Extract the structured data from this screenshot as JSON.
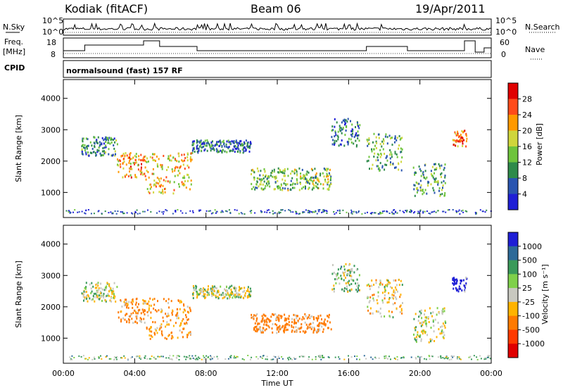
{
  "header": {
    "station": "Kodiak (fitACF)",
    "beam": "Beam 06",
    "date": "19/Apr/2011"
  },
  "status_panels": {
    "nsky_label": "N.Sky",
    "freq_label_1": "Freq.",
    "freq_label_2": "[MHz]",
    "cpid_label": "CPID",
    "nsearch_label": "N.Search",
    "nave_label": "Nave",
    "noise_ticks_left": [
      "10^5",
      "10^0"
    ],
    "noise_ticks_right": [
      "10^5",
      "10^0"
    ],
    "freq_ticks": [
      "18",
      "8"
    ],
    "nave_ticks": [
      "60",
      "0"
    ],
    "cpid_text": "normalsound (fast) 157 RF"
  },
  "chart_data": [
    {
      "type": "heatmap",
      "name": "power",
      "ylabel": "Slant Range [km]",
      "ylim": [
        200,
        4600
      ],
      "y_ticks": [
        "1000",
        "2000",
        "3000",
        "4000"
      ],
      "colorbar_label": "Power [dB]",
      "colorbar_ticks": [
        "28",
        "24",
        "20",
        "16",
        "12",
        "8",
        "4"
      ],
      "colorbar_colors": [
        "#1f1fd6",
        "#2a55b0",
        "#2e8a4a",
        "#6ec43c",
        "#cfd63b",
        "#ff9900",
        "#ff4b1a",
        "#e00000"
      ],
      "echo_bands": [
        {
          "t": [
            1.0,
            3.0
          ],
          "r": [
            2200,
            2800
          ],
          "level": 10
        },
        {
          "t": [
            3.0,
            4.6
          ],
          "r": [
            1500,
            2300
          ],
          "level": 22
        },
        {
          "t": [
            4.6,
            7.2
          ],
          "r": [
            1000,
            2300
          ],
          "level": 20
        },
        {
          "t": [
            7.2,
            10.5
          ],
          "r": [
            2300,
            2700
          ],
          "level": 8
        },
        {
          "t": [
            10.5,
            15.0
          ],
          "r": [
            1100,
            1800
          ],
          "level": 14
        },
        {
          "t": [
            15.0,
            16.6
          ],
          "r": [
            2500,
            3400
          ],
          "level": 9
        },
        {
          "t": [
            17.0,
            19.0
          ],
          "r": [
            1700,
            2900
          ],
          "level": 12
        },
        {
          "t": [
            19.6,
            21.4
          ],
          "r": [
            900,
            2000
          ],
          "level": 11
        },
        {
          "t": [
            21.8,
            22.6
          ],
          "r": [
            2500,
            3000
          ],
          "level": 24
        }
      ]
    },
    {
      "type": "heatmap",
      "name": "velocity",
      "ylabel": "Slant Range [km]",
      "ylim": [
        200,
        4600
      ],
      "y_ticks": [
        "1000",
        "2000",
        "3000",
        "4000"
      ],
      "colorbar_label": "Velocity [m s⁻¹]",
      "colorbar_ticks": [
        "1000",
        "500",
        "100",
        "25",
        "-25",
        "-100",
        "-500",
        "-1000"
      ],
      "colorbar_colors": [
        "#1f1fd6",
        "#2d6a98",
        "#3a9a5a",
        "#7fd04a",
        "#c8c8c0",
        "#ffb300",
        "#ff7a00",
        "#ff3a00",
        "#e00000"
      ],
      "echo_bands": [
        {
          "t": [
            1.0,
            3.0
          ],
          "r": [
            2200,
            2800
          ],
          "v": 0
        },
        {
          "t": [
            3.0,
            4.6
          ],
          "r": [
            1500,
            2300
          ],
          "v": -150
        },
        {
          "t": [
            4.6,
            7.2
          ],
          "r": [
            1000,
            2300
          ],
          "v": -120
        },
        {
          "t": [
            7.2,
            10.5
          ],
          "r": [
            2300,
            2700
          ],
          "v": 0
        },
        {
          "t": [
            10.5,
            15.0
          ],
          "r": [
            1200,
            1800
          ],
          "v": -300
        },
        {
          "t": [
            15.0,
            16.6
          ],
          "r": [
            2500,
            3400
          ],
          "v": 50
        },
        {
          "t": [
            17.0,
            19.0
          ],
          "r": [
            1700,
            2900
          ],
          "v": -30
        },
        {
          "t": [
            19.6,
            21.4
          ],
          "r": [
            900,
            2000
          ],
          "v": 0
        },
        {
          "t": [
            21.8,
            22.6
          ],
          "r": [
            2500,
            3000
          ],
          "v": 800
        }
      ]
    }
  ],
  "x_axis": {
    "label": "Time UT",
    "ticks": [
      "00:00",
      "04:00",
      "08:00",
      "12:00",
      "16:00",
      "20:00",
      "00:00"
    ],
    "xlim": [
      0,
      24
    ]
  }
}
